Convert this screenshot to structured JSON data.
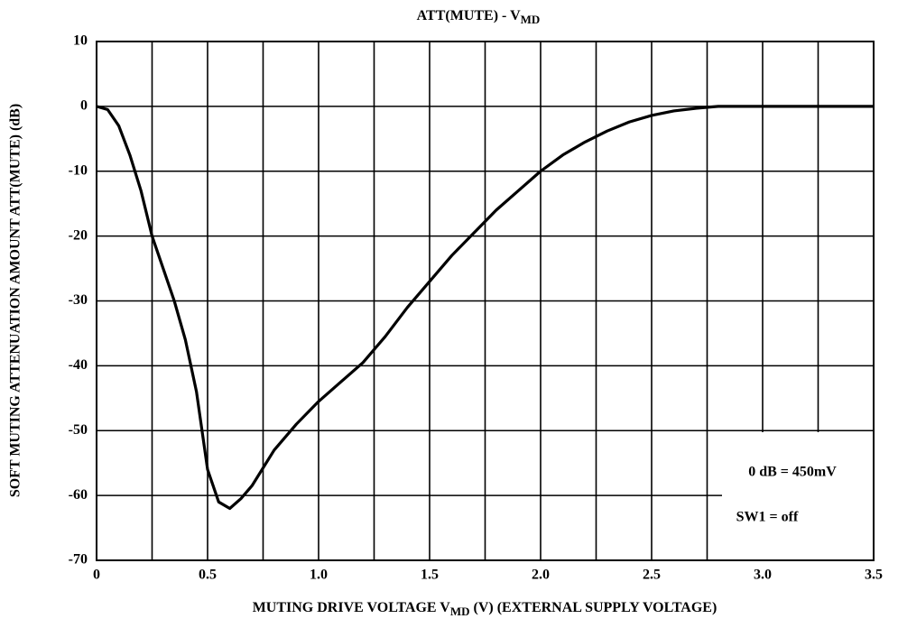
{
  "chart_data": {
    "type": "line",
    "title": "ATT(MUTE) - V",
    "title_subscript": "MD",
    "xlabel": "MUTING DRIVE VOLTAGE  V",
    "xlabel_subscript": "MD",
    "xlabel_rest": " (V) (EXTERNAL SUPPLY VOLTAGE)",
    "ylabel": "SOFT MUTING ATTENUATION AMOUNT  ATT(MUTE) (dB)",
    "annotations": [
      "0 dB = 450mV",
      "SW1 = off"
    ],
    "xlim": [
      0,
      3.5
    ],
    "ylim": [
      -70,
      10
    ],
    "xticks": [
      0,
      0.5,
      {
        "value": 1,
        "label": "1.0"
      },
      1.5,
      {
        "value": 2,
        "label": "2.0"
      },
      2.5,
      {
        "value": 3,
        "label": "3.0"
      },
      3.5
    ],
    "x_minor_ticks": [
      0.25,
      0.75,
      1.25,
      1.75,
      2.25,
      2.75,
      3.25
    ],
    "yticks": [
      10,
      0,
      -10,
      -20,
      -30,
      -40,
      -50,
      -60,
      -70
    ],
    "grid": true,
    "x": [
      0,
      0.05,
      0.1,
      0.15,
      0.2,
      0.25,
      0.3,
      0.35,
      0.4,
      0.45,
      0.5,
      0.55,
      0.6,
      0.65,
      0.7,
      0.8,
      0.9,
      1.0,
      1.1,
      1.2,
      1.3,
      1.4,
      1.5,
      1.6,
      1.7,
      1.8,
      1.9,
      2.0,
      2.1,
      2.2,
      2.3,
      2.4,
      2.5,
      2.6,
      2.7,
      2.8,
      3.0,
      3.5
    ],
    "series": [
      {
        "color": "#000000",
        "values": [
          0,
          -0.5,
          -3,
          -7.5,
          -13,
          -20,
          -25,
          -30,
          -36,
          -44,
          -56,
          -61,
          -62,
          -60.5,
          -58.5,
          -53,
          -49,
          -45.5,
          -42.5,
          -39.5,
          -35.5,
          -31,
          -27,
          -23,
          -19.5,
          -16,
          -13,
          -10,
          -7.5,
          -5.5,
          -3.8,
          -2.4,
          -1.4,
          -0.7,
          -0.3,
          0,
          0,
          0
        ]
      }
    ]
  }
}
